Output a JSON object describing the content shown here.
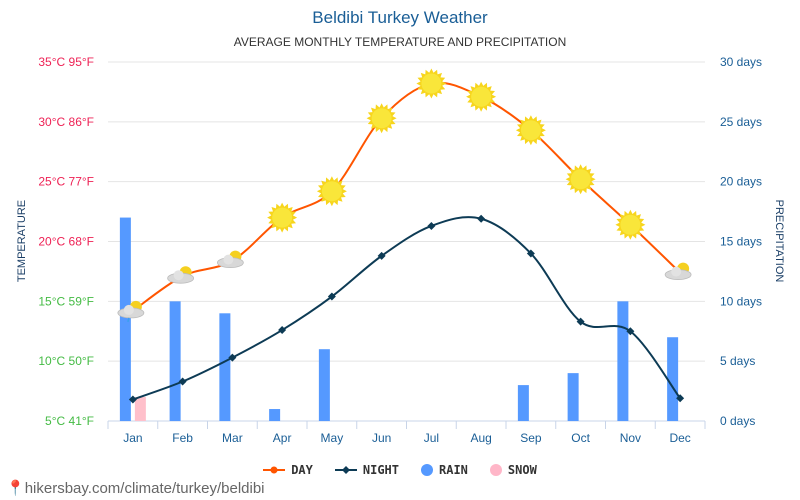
{
  "chart_data": {
    "type": "line",
    "title": "Beldibi Turkey Weather",
    "subtitle": "AVERAGE MONTHLY TEMPERATURE AND PRECIPITATION",
    "ylabel_left": "TEMPERATURE",
    "ylabel_right": "PRECIPITATION",
    "categories": [
      "Jan",
      "Feb",
      "Mar",
      "Apr",
      "May",
      "Jun",
      "Jul",
      "Aug",
      "Sep",
      "Oct",
      "Nov",
      "Dec"
    ],
    "left_ticks": [
      "5°C 41°F",
      "10°C 50°F",
      "15°C 59°F",
      "20°C 68°F",
      "25°C 77°F",
      "30°C 86°F",
      "35°C 95°F"
    ],
    "right_ticks": [
      "0 days",
      "5 days",
      "10 days",
      "15 days",
      "20 days",
      "25 days",
      "30 days"
    ],
    "ylim_left": [
      5,
      35
    ],
    "ylim_right": [
      0,
      30
    ],
    "series": [
      {
        "name": "DAY",
        "unit": "°C",
        "color": "#ff5500",
        "values": [
          14.2,
          17.1,
          18.4,
          22.0,
          24.2,
          30.3,
          33.2,
          32.1,
          29.3,
          25.2,
          21.4,
          17.4
        ]
      },
      {
        "name": "NIGHT",
        "unit": "°C",
        "color": "#0d3b55",
        "values": [
          6.8,
          8.3,
          10.3,
          12.6,
          15.4,
          18.8,
          21.3,
          21.9,
          19.0,
          13.3,
          12.5,
          6.9
        ]
      },
      {
        "name": "RAIN",
        "unit": "days",
        "color": "#5599ff",
        "values": [
          17,
          10,
          9,
          1,
          6,
          0,
          0,
          0,
          3,
          4,
          10,
          7
        ]
      },
      {
        "name": "SNOW",
        "unit": "days",
        "color": "#ffc0cb",
        "values": [
          2,
          0,
          0,
          0,
          0,
          0,
          0,
          0,
          0,
          0,
          0,
          0
        ]
      }
    ],
    "weather_icons": [
      "cloud-rain",
      "cloud-sun",
      "cloud-sun",
      "sun",
      "sun",
      "sun",
      "sun",
      "sun",
      "sun",
      "sun",
      "sun",
      "cloud-sun"
    ],
    "grid": true,
    "legend_position": "bottom"
  },
  "footer": "hikersbay.com/climate/turkey/beldibi"
}
